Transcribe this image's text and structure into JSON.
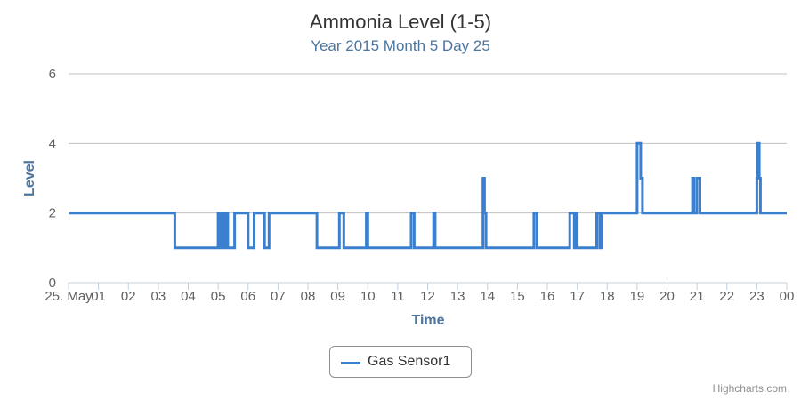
{
  "chart_data": {
    "type": "line",
    "title": "Ammonia Level (1-5)",
    "subtitle": "Year 2015 Month 5 Day 25",
    "xlabel": "Time",
    "ylabel": "Level",
    "ylim": [
      0,
      6
    ],
    "yticks": [
      0,
      2,
      4,
      6
    ],
    "xlim": [
      0,
      24
    ],
    "xticks": [
      {
        "v": 0,
        "label": "25. May"
      },
      {
        "v": 1,
        "label": "01"
      },
      {
        "v": 2,
        "label": "02"
      },
      {
        "v": 3,
        "label": "03"
      },
      {
        "v": 4,
        "label": "04"
      },
      {
        "v": 5,
        "label": "05"
      },
      {
        "v": 6,
        "label": "06"
      },
      {
        "v": 7,
        "label": "07"
      },
      {
        "v": 8,
        "label": "08"
      },
      {
        "v": 9,
        "label": "09"
      },
      {
        "v": 10,
        "label": "10"
      },
      {
        "v": 11,
        "label": "11"
      },
      {
        "v": 12,
        "label": "12"
      },
      {
        "v": 13,
        "label": "13"
      },
      {
        "v": 14,
        "label": "14"
      },
      {
        "v": 15,
        "label": "15"
      },
      {
        "v": 16,
        "label": "16"
      },
      {
        "v": 17,
        "label": "17"
      },
      {
        "v": 18,
        "label": "18"
      },
      {
        "v": 19,
        "label": "19"
      },
      {
        "v": 20,
        "label": "20"
      },
      {
        "v": 21,
        "label": "21"
      },
      {
        "v": 22,
        "label": "22"
      },
      {
        "v": 23,
        "label": "23"
      },
      {
        "v": 24,
        "label": "00"
      }
    ],
    "grid": true,
    "legend_position": "bottom-center",
    "series": [
      {
        "name": "Gas Sensor1",
        "color": "#3b80cf",
        "points": [
          [
            0,
            2
          ],
          [
            3.55,
            2
          ],
          [
            3.55,
            1
          ],
          [
            5.0,
            1
          ],
          [
            5.0,
            2
          ],
          [
            5.05,
            2
          ],
          [
            5.05,
            1
          ],
          [
            5.12,
            1
          ],
          [
            5.12,
            2
          ],
          [
            5.18,
            2
          ],
          [
            5.18,
            1
          ],
          [
            5.25,
            1
          ],
          [
            5.25,
            2
          ],
          [
            5.32,
            2
          ],
          [
            5.32,
            1
          ],
          [
            5.55,
            1
          ],
          [
            5.55,
            2
          ],
          [
            5.65,
            2
          ],
          [
            5.65,
            2
          ],
          [
            6.0,
            2
          ],
          [
            6.0,
            1
          ],
          [
            6.2,
            1
          ],
          [
            6.2,
            2
          ],
          [
            6.55,
            2
          ],
          [
            6.55,
            1
          ],
          [
            6.7,
            1
          ],
          [
            6.7,
            2
          ],
          [
            8.3,
            2
          ],
          [
            8.3,
            1
          ],
          [
            9.05,
            1
          ],
          [
            9.05,
            2
          ],
          [
            9.2,
            2
          ],
          [
            9.2,
            1
          ],
          [
            9.95,
            1
          ],
          [
            9.95,
            2
          ],
          [
            10.0,
            2
          ],
          [
            10.0,
            1
          ],
          [
            11.45,
            1
          ],
          [
            11.45,
            2
          ],
          [
            11.55,
            2
          ],
          [
            11.55,
            1
          ],
          [
            12.2,
            1
          ],
          [
            12.2,
            2
          ],
          [
            12.25,
            2
          ],
          [
            12.25,
            1
          ],
          [
            13.85,
            1
          ],
          [
            13.85,
            3
          ],
          [
            13.9,
            3
          ],
          [
            13.9,
            2
          ],
          [
            13.95,
            2
          ],
          [
            13.95,
            1
          ],
          [
            15.55,
            1
          ],
          [
            15.55,
            2
          ],
          [
            15.65,
            2
          ],
          [
            15.65,
            1
          ],
          [
            16.75,
            1
          ],
          [
            16.75,
            2
          ],
          [
            16.9,
            2
          ],
          [
            16.9,
            1
          ],
          [
            16.95,
            1
          ],
          [
            16.95,
            2
          ],
          [
            17.0,
            2
          ],
          [
            17.0,
            1
          ],
          [
            17.65,
            1
          ],
          [
            17.65,
            2
          ],
          [
            17.75,
            2
          ],
          [
            17.75,
            1
          ],
          [
            17.8,
            1
          ],
          [
            17.8,
            2
          ],
          [
            19.0,
            2
          ],
          [
            19.0,
            4
          ],
          [
            19.12,
            4
          ],
          [
            19.12,
            3
          ],
          [
            19.18,
            3
          ],
          [
            19.18,
            2
          ],
          [
            20.85,
            2
          ],
          [
            20.85,
            3
          ],
          [
            20.9,
            3
          ],
          [
            20.9,
            2
          ],
          [
            21.0,
            2
          ],
          [
            21.0,
            3
          ],
          [
            21.1,
            3
          ],
          [
            21.1,
            2
          ],
          [
            23.0,
            2
          ],
          [
            23.0,
            3
          ],
          [
            23.02,
            3
          ],
          [
            23.02,
            4
          ],
          [
            23.08,
            4
          ],
          [
            23.08,
            3
          ],
          [
            23.12,
            3
          ],
          [
            23.12,
            2
          ],
          [
            24.0,
            2
          ]
        ]
      }
    ]
  },
  "credits": "Highcharts.com"
}
